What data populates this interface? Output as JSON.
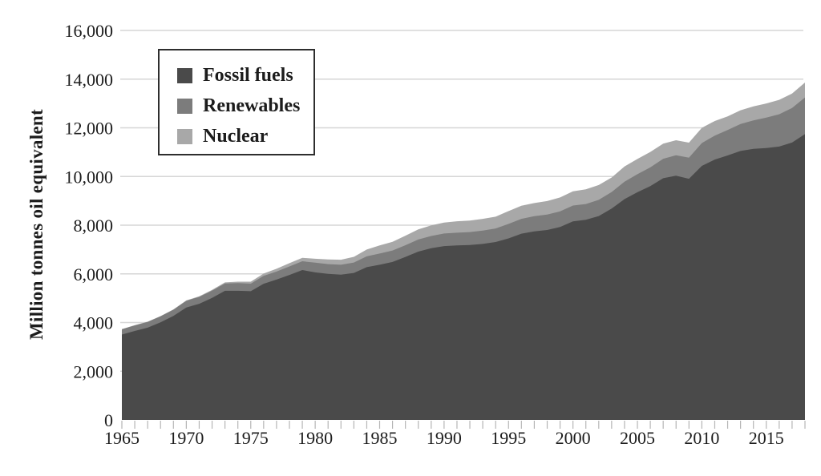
{
  "y_axis": {
    "title": "Million tonnes oil equivalent",
    "tick_values": [
      0,
      2000,
      4000,
      6000,
      8000,
      10000,
      12000,
      14000,
      16000
    ],
    "tick_labels": [
      "0",
      "2,000",
      "4,000",
      "6,000",
      "8,000",
      "10,000",
      "12,000",
      "14,000",
      "16,000"
    ]
  },
  "x_axis": {
    "label_years": [
      1965,
      1970,
      1975,
      1980,
      1985,
      1990,
      1995,
      2000,
      2005,
      2010,
      2015
    ],
    "minor_tick_start": 1965,
    "minor_tick_end": 2018
  },
  "legend": {
    "items": [
      {
        "label": "Fossil fuels"
      },
      {
        "label": "Renewables"
      },
      {
        "label": "Nuclear"
      }
    ]
  },
  "colors": {
    "fossil": "#4a4a4a",
    "renewables": "#7c7c7c",
    "nuclear": "#a8a8a8",
    "gridline": "#d6d6d6",
    "tick": "#b5b5b5",
    "text": "#1c1c1c",
    "legend_border": "#2e2e2e",
    "background": "#ffffff"
  },
  "chart_data": {
    "type": "area",
    "stacked": true,
    "title": "",
    "xlabel": "",
    "ylabel": "Million tonnes oil equivalent",
    "xlim": [
      1965,
      2018
    ],
    "ylim": [
      0,
      16000
    ],
    "grid": "horizontal",
    "legend_position": "top-left",
    "x": [
      1965,
      1966,
      1967,
      1968,
      1969,
      1970,
      1971,
      1972,
      1973,
      1974,
      1975,
      1976,
      1977,
      1978,
      1979,
      1980,
      1981,
      1982,
      1983,
      1984,
      1985,
      1986,
      1987,
      1988,
      1989,
      1990,
      1991,
      1992,
      1993,
      1994,
      1995,
      1996,
      1997,
      1998,
      1999,
      2000,
      2001,
      2002,
      2003,
      2004,
      2005,
      2006,
      2007,
      2008,
      2009,
      2010,
      2011,
      2012,
      2013,
      2014,
      2015,
      2016,
      2017,
      2018
    ],
    "series": [
      {
        "name": "Fossil fuels",
        "color": "#4a4a4a",
        "values": [
          3507,
          3654,
          3790,
          4008,
          4271,
          4619,
          4770,
          5011,
          5304,
          5305,
          5288,
          5595,
          5765,
          5955,
          6155,
          6062,
          6001,
          5965,
          6037,
          6274,
          6375,
          6489,
          6696,
          6915,
          7056,
          7142,
          7167,
          7188,
          7230,
          7310,
          7457,
          7650,
          7744,
          7804,
          7924,
          8154,
          8219,
          8374,
          8682,
          9070,
          9352,
          9605,
          9928,
          10031,
          9906,
          10435,
          10695,
          10865,
          11047,
          11136,
          11171,
          11228,
          11393,
          11739
        ]
      },
      {
        "name": "Renewables",
        "color": "#7c7c7c",
        "values": [
          217,
          228,
          235,
          245,
          255,
          273,
          285,
          295,
          300,
          315,
          309,
          320,
          330,
          350,
          365,
          397,
          400,
          410,
          430,
          445,
          460,
          470,
          480,
          495,
          500,
          515,
          525,
          530,
          550,
          555,
          597,
          610,
          625,
          635,
          645,
          651,
          650,
          665,
          680,
          715,
          741,
          770,
          800,
          840,
          870,
          939,
          985,
          1045,
          1110,
          1170,
          1246,
          1330,
          1420,
          1510
        ]
      },
      {
        "name": "Nuclear",
        "color": "#a8a8a8",
        "values": [
          6,
          8,
          10,
          12,
          14,
          18,
          25,
          34,
          46,
          60,
          83,
          95,
          115,
          135,
          140,
          161,
          189,
          205,
          233,
          281,
          335,
          361,
          394,
          420,
          434,
          453,
          468,
          472,
          480,
          485,
          526,
          540,
          541,
          551,
          571,
          585,
          601,
          611,
          598,
          625,
          627,
          635,
          622,
          619,
          614,
          626,
          600,
          560,
          563,
          574,
          583,
          592,
          597,
          611
        ]
      }
    ]
  }
}
